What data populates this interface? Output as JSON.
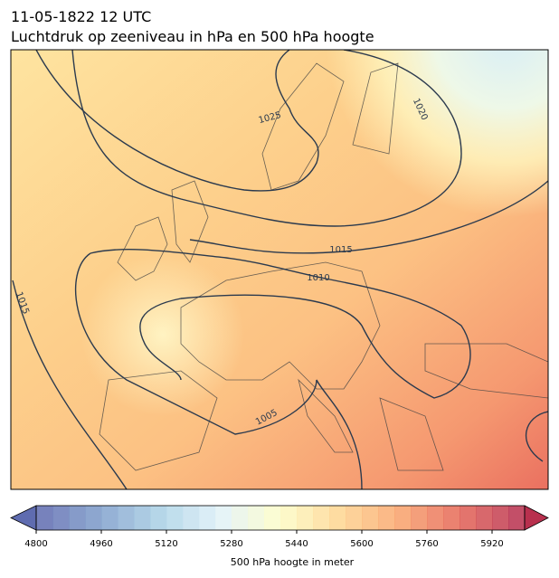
{
  "header": {
    "title": "11-05-1822 12 UTC",
    "subtitle": "Luchtdruk op zeeniveau in hPa en 500 hPa hoogte"
  },
  "map": {
    "contour_labels": [
      1025,
      1020,
      1015,
      1010,
      1005,
      1015
    ]
  },
  "colorbar": {
    "lim": [
      4800,
      6000
    ],
    "step": 40,
    "ticks": [
      4800,
      4960,
      5120,
      5280,
      5440,
      5600,
      5760,
      5920
    ],
    "label": "500 hPa hoogte in meter"
  }
}
